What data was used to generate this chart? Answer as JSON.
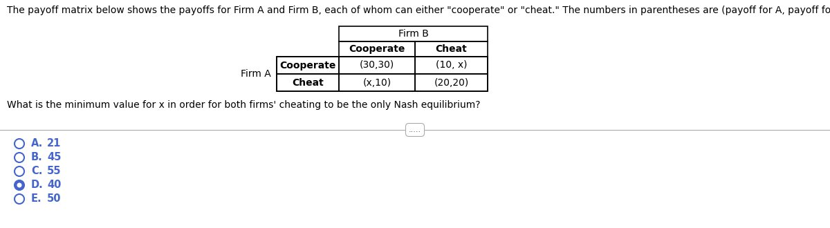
{
  "title_text": "The payoff matrix below shows the payoffs for Firm A and Firm B, each of whom can either \"cooperate\" or \"cheat.\" The numbers in parentheses are (payoff for A, payoff for B).",
  "question_text": "What is the minimum value for x in order for both firms' cheating to be the only Nash equilibrium?",
  "firm_b_label": "Firm B",
  "firm_a_label": "Firm A",
  "col_headers": [
    "Cooperate",
    "Cheat"
  ],
  "row_headers": [
    "Cooperate",
    "Cheat"
  ],
  "cell_data": [
    [
      "(30,30)",
      "(10, x)"
    ],
    [
      "(x,10)",
      "(20,20)"
    ]
  ],
  "choices": [
    {
      "letter": "A.",
      "text": "21",
      "selected": false
    },
    {
      "letter": "B.",
      "text": "45",
      "selected": false
    },
    {
      "letter": "C.",
      "text": "55",
      "selected": false
    },
    {
      "letter": "D.",
      "text": "40",
      "selected": true
    },
    {
      "letter": "E.",
      "text": "50",
      "selected": false
    }
  ],
  "dots_text": ".....",
  "bg_color": "#ffffff",
  "text_color": "#000000",
  "choice_color": "#4466cc",
  "title_fontsize": 10,
  "question_fontsize": 10,
  "table_fontsize": 10,
  "choice_fontsize": 10.5
}
